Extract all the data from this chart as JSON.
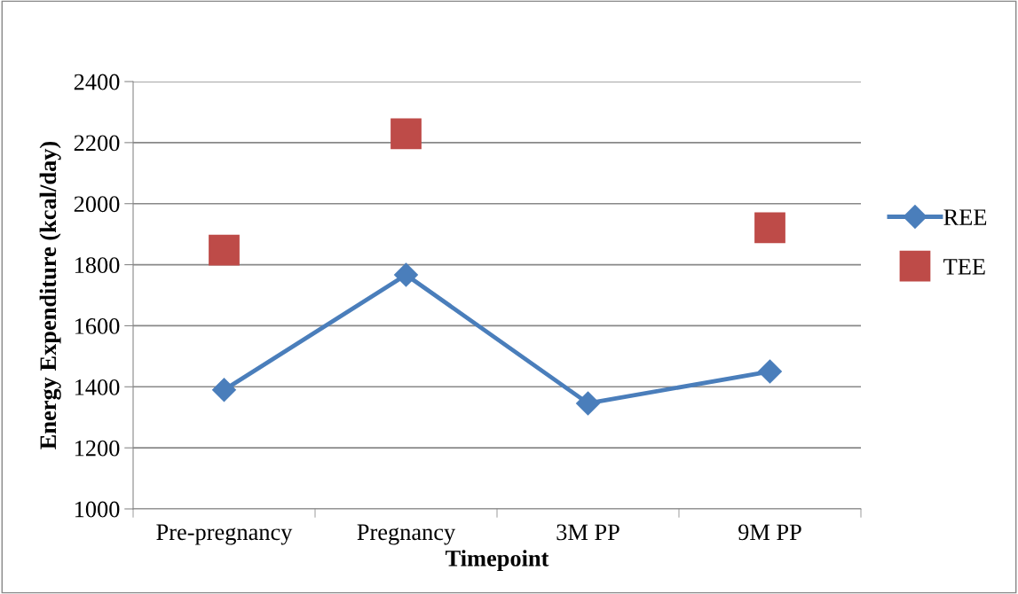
{
  "chart_data": {
    "type": "line",
    "xlabel": "Timepoint",
    "ylabel": "Energy Expenditure (kcal/day)",
    "categories": [
      "Pre-pregnancy",
      "Pregnancy",
      "3M PP",
      "9M PP"
    ],
    "series": [
      {
        "name": "REE",
        "color": "#4a7ebb",
        "marker": "diamond",
        "values": [
          1390,
          1767,
          1346,
          1450
        ]
      },
      {
        "name": "TEE",
        "type": "scatter",
        "color": "#be4b48",
        "marker": "square",
        "values": [
          1848,
          2229,
          null,
          1921
        ]
      }
    ],
    "ylim": [
      1000,
      2400
    ],
    "yticks": [
      1000,
      1200,
      1400,
      1600,
      1800,
      2000,
      2200,
      2400
    ],
    "grid": "y",
    "legend": "right"
  }
}
